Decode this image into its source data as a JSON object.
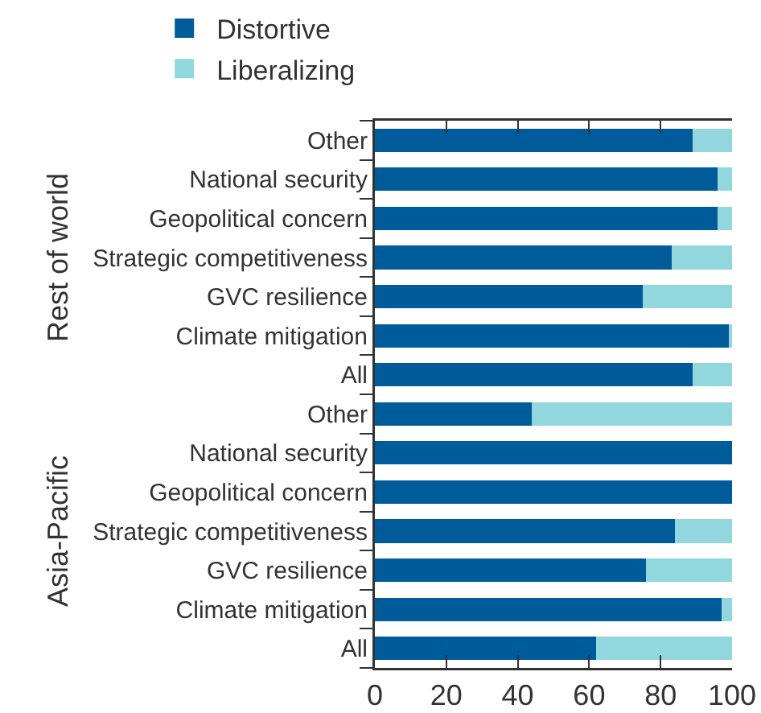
{
  "chart_data": [
    {
      "type": "bar",
      "orientation": "horizontal",
      "stacked": true,
      "ylabel": "Rest of world",
      "legend": "top",
      "tick_labels": "y",
      "categories": [
        "Other",
        "National security",
        "Geopolitical concern",
        "Strategic competitiveness",
        "GVC resilience",
        "Climate mitigation",
        "All"
      ],
      "series": [
        {
          "name": "Distortive",
          "color": "#005b9a",
          "values": [
            89,
            96,
            96,
            83,
            75,
            99,
            89
          ]
        },
        {
          "name": "Liberalizing",
          "color": "#92d6de",
          "values": [
            11,
            4,
            4,
            17,
            25,
            1,
            11
          ]
        }
      ],
      "xlim": [
        0,
        100
      ],
      "xticks": [
        0,
        20,
        40,
        60,
        80,
        100
      ]
    },
    {
      "type": "bar",
      "orientation": "horizontal",
      "stacked": true,
      "ylabel": "Asia-Pacific",
      "categories": [
        "Other",
        "National security",
        "Geopolitical concern",
        "Strategic competitiveness",
        "GVC resilience",
        "Climate mitigation",
        "All"
      ],
      "series": [
        {
          "color": "#005b9a",
          "values": [
            44,
            100,
            100,
            84,
            76,
            97,
            62
          ]
        },
        {
          "color": "#92d6de",
          "values": [
            56,
            0,
            0,
            16,
            24,
            3,
            38
          ]
        }
      ],
      "xlim": [
        0,
        100
      ],
      "xticks": [
        0,
        20,
        40,
        60,
        80,
        100
      ]
    }
  ]
}
